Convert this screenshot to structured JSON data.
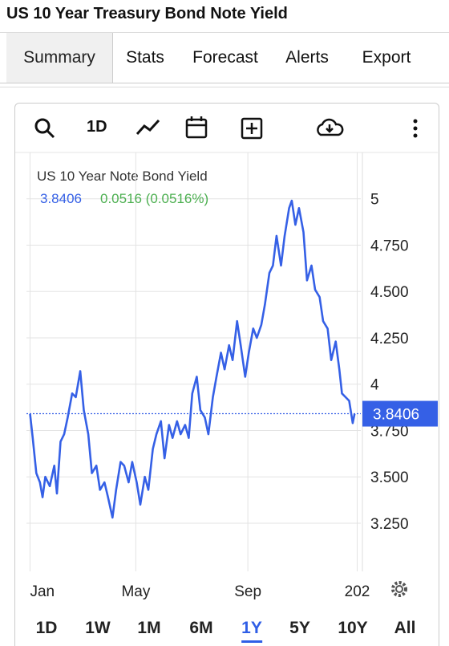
{
  "header": {
    "title": "US 10 Year Treasury Bond Note Yield"
  },
  "tabs": {
    "items": [
      "Summary",
      "Stats",
      "Forecast",
      "Alerts",
      "Export"
    ],
    "selected": 0
  },
  "toolbar": {
    "interval": "1D"
  },
  "ranges": {
    "items": [
      "1D",
      "1W",
      "1M",
      "6M",
      "1Y",
      "5Y",
      "10Y",
      "All"
    ],
    "selected": 4
  },
  "chart_data": {
    "type": "line",
    "title": "US 10 Year Note Bond Yield",
    "last_value": 3.8406,
    "change_label": "0.0516 (0.0516%)",
    "x": [
      0,
      3,
      7,
      11,
      14,
      17,
      22,
      27,
      30,
      34,
      38,
      42,
      47,
      51,
      56,
      60,
      65,
      69,
      74,
      78,
      83,
      87,
      92,
      96,
      101,
      105,
      110,
      114,
      119,
      123,
      128,
      132,
      137,
      141,
      146,
      150,
      155,
      159,
      164,
      168,
      173,
      177,
      181,
      186,
      190,
      195,
      199,
      204,
      208,
      213,
      217,
      222,
      226,
      231,
      235,
      240,
      244,
      249,
      253,
      258,
      262,
      267,
      271,
      275,
      280,
      284,
      289,
      292,
      296,
      300,
      305,
      309,
      314,
      318,
      323,
      327,
      332,
      336,
      341,
      345,
      348,
      352,
      356,
      360,
      362
    ],
    "series": [
      {
        "name": "US 10 Year Note Bond Yield",
        "color": "#3560e6",
        "values": [
          3.84,
          3.71,
          3.52,
          3.47,
          3.39,
          3.5,
          3.45,
          3.56,
          3.41,
          3.69,
          3.73,
          3.82,
          3.95,
          3.93,
          4.07,
          3.86,
          3.73,
          3.52,
          3.56,
          3.43,
          3.47,
          3.39,
          3.28,
          3.43,
          3.58,
          3.56,
          3.47,
          3.58,
          3.47,
          3.35,
          3.5,
          3.43,
          3.65,
          3.73,
          3.8,
          3.6,
          3.78,
          3.71,
          3.8,
          3.73,
          3.78,
          3.71,
          3.95,
          4.04,
          3.86,
          3.82,
          3.73,
          3.93,
          4.04,
          4.17,
          4.08,
          4.21,
          4.13,
          4.34,
          4.21,
          4.04,
          4.17,
          4.3,
          4.25,
          4.32,
          4.43,
          4.6,
          4.64,
          4.8,
          4.64,
          4.8,
          4.95,
          4.99,
          4.86,
          4.95,
          4.82,
          4.56,
          4.64,
          4.51,
          4.47,
          4.34,
          4.3,
          4.13,
          4.23,
          4.08,
          3.95,
          3.93,
          3.91,
          3.79,
          3.84
        ]
      }
    ],
    "xlim": [
      -4,
      369
    ],
    "xticks": [
      {
        "value": 0,
        "label": "Jan"
      },
      {
        "value": 118,
        "label": "May"
      },
      {
        "value": 243,
        "label": "Sep"
      },
      {
        "value": 365,
        "label": "202"
      }
    ],
    "ylim": [
      2.99,
      5.25
    ],
    "yticks": [
      {
        "value": 3.25,
        "label": "3.250"
      },
      {
        "value": 3.5,
        "label": "3.500"
      },
      {
        "value": 3.75,
        "label": "3.750"
      },
      4,
      {
        "value": 4.25,
        "label": "4.250"
      },
      {
        "value": 4.5,
        "label": "4.500"
      },
      {
        "value": 4.75,
        "label": "4.750"
      },
      5
    ],
    "grid": true,
    "change_color": "#4caf50",
    "grid_color": "#e3e3e3"
  }
}
